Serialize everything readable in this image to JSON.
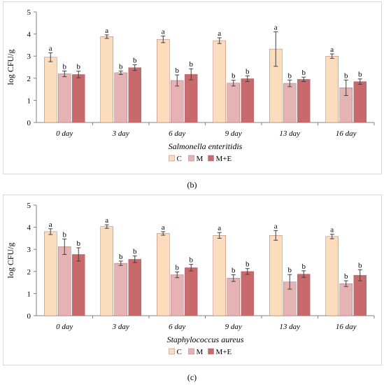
{
  "colors": {
    "C": "#fbdcbc",
    "M": "#e6b3b5",
    "ME": "#c8696b",
    "axis": "#808080",
    "errorbar": "#404040",
    "border": "#d9d9d9"
  },
  "panel_labels": [
    "(b)",
    "(c)"
  ],
  "chart_data": [
    {
      "type": "bar",
      "ylabel": "log CFU/g",
      "xlabel": "Salmonella enteritidis",
      "ylim": [
        0,
        5
      ],
      "yticks": [
        0,
        1,
        2,
        3,
        4,
        5
      ],
      "grid": false,
      "legend": "bottom-center",
      "categories": [
        "0 day",
        "3 day",
        "6 day",
        "9 day",
        "13 day",
        "16 day"
      ],
      "series": [
        {
          "name": "C",
          "values": [
            2.95,
            3.88,
            3.76,
            3.7,
            3.32,
            3.0
          ],
          "errors": [
            0.2,
            0.08,
            0.15,
            0.13,
            0.78,
            0.1
          ],
          "labels": [
            "a",
            "a",
            "a",
            "a",
            "a",
            "a"
          ]
        },
        {
          "name": "M",
          "values": [
            2.2,
            2.25,
            1.9,
            1.78,
            1.77,
            1.57
          ],
          "errors": [
            0.13,
            0.08,
            0.25,
            0.13,
            0.15,
            0.35
          ],
          "labels": [
            "b",
            "b",
            "b",
            "b",
            "b",
            "b"
          ]
        },
        {
          "name": "M+E",
          "values": [
            2.17,
            2.48,
            2.18,
            1.98,
            1.95,
            1.85
          ],
          "errors": [
            0.15,
            0.13,
            0.25,
            0.13,
            0.1,
            0.12
          ],
          "labels": [
            "b",
            "b",
            "b",
            "b",
            "b",
            "b"
          ]
        }
      ]
    },
    {
      "type": "bar",
      "ylabel": "log CFU/g",
      "xlabel": "Staphylococcus aureus",
      "ylim": [
        0,
        5
      ],
      "yticks": [
        0,
        1,
        2,
        3,
        4,
        5
      ],
      "grid": false,
      "legend": "bottom-center",
      "categories": [
        "0 day",
        "3 day",
        "6 day",
        "9 day",
        "13 day",
        "16 day"
      ],
      "series": [
        {
          "name": "C",
          "values": [
            3.8,
            4.03,
            3.72,
            3.63,
            3.63,
            3.58
          ],
          "errors": [
            0.13,
            0.08,
            0.08,
            0.13,
            0.22,
            0.1
          ],
          "labels": [
            "a",
            "a",
            "a",
            "a",
            "a",
            "a"
          ]
        },
        {
          "name": "M",
          "values": [
            3.12,
            2.37,
            1.85,
            1.7,
            1.53,
            1.45
          ],
          "errors": [
            0.35,
            0.1,
            0.13,
            0.15,
            0.33,
            0.13
          ],
          "labels": [
            "b",
            "b",
            "b",
            "b",
            "b",
            "b"
          ]
        },
        {
          "name": "M+E",
          "values": [
            2.77,
            2.55,
            2.17,
            2.0,
            1.88,
            1.83
          ],
          "errors": [
            0.3,
            0.15,
            0.15,
            0.13,
            0.15,
            0.25
          ],
          "labels": [
            "b",
            "b",
            "b",
            "b",
            "b",
            "b"
          ]
        }
      ]
    }
  ]
}
